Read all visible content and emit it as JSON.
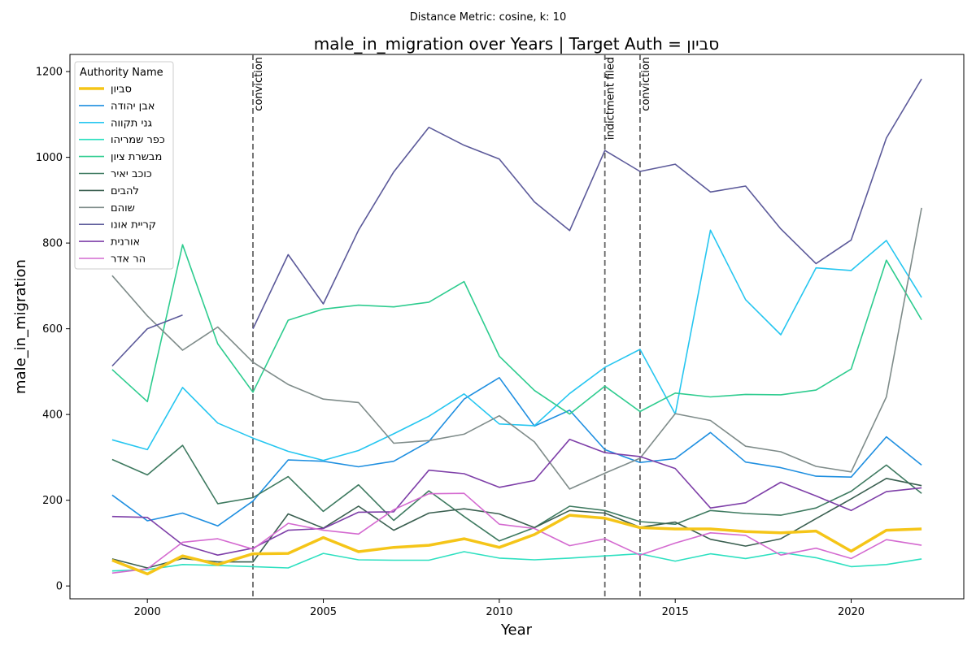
{
  "suptitle": "Distance Metric: cosine, k: 10",
  "chart_data": {
    "type": "line",
    "title": "male_in_migration over Years | Target Auth = סביון",
    "xlabel": "Year",
    "ylabel": "male_in_migration",
    "xlim": [
      1997.8,
      2023.2
    ],
    "ylim": [
      -30,
      1240
    ],
    "xticks": [
      2000,
      2005,
      2010,
      2015,
      2020
    ],
    "yticks": [
      0,
      200,
      400,
      600,
      800,
      1000,
      1200
    ],
    "grid": false,
    "legend": {
      "title": "Authority Name",
      "placement": "upper-left"
    },
    "vlines": [
      {
        "x": 2003,
        "label": "conviction"
      },
      {
        "x": 2013,
        "label": "indictment filed"
      },
      {
        "x": 2014,
        "label": "conviction"
      }
    ],
    "series": [
      {
        "name": "סביון",
        "color": "#f5c518",
        "width": 3.5,
        "highlight": true,
        "x": [
          1999,
          2000,
          2001,
          2002,
          2003,
          2004,
          2005,
          2006,
          2007,
          2008,
          2009,
          2010,
          2011,
          2012,
          2013,
          2014,
          2015,
          2016,
          2017,
          2018,
          2019,
          2020,
          2021,
          2022
        ],
        "y": [
          60,
          28,
          70,
          50,
          75,
          76,
          113,
          80,
          90,
          95,
          110,
          90,
          120,
          165,
          158,
          136,
          133,
          133,
          127,
          124,
          128,
          81,
          130,
          133
        ]
      },
      {
        "name": "אבן יהודה",
        "color": "#1f8fe0",
        "width": 1.6,
        "x": [
          1999,
          2000,
          2001,
          2002,
          2003,
          2004,
          2005,
          2006,
          2007,
          2008,
          2009,
          2010,
          2011,
          2012,
          2013,
          2014,
          2015,
          2016,
          2017,
          2018,
          2019,
          2020,
          2021,
          2022
        ],
        "y": [
          212,
          152,
          170,
          140,
          198,
          294,
          291,
          278,
          291,
          337,
          436,
          486,
          373,
          410,
          318,
          288,
          297,
          358,
          289,
          276,
          256,
          254,
          348,
          282
        ]
      },
      {
        "name": "גני תקווה",
        "color": "#26c6f0",
        "width": 1.6,
        "x": [
          1999,
          2000,
          2001,
          2002,
          2003,
          2004,
          2005,
          2006,
          2007,
          2008,
          2009,
          2010,
          2011,
          2012,
          2013,
          2014,
          2015,
          2016,
          2017,
          2018,
          2019,
          2020,
          2021,
          2022
        ],
        "y": [
          341,
          318,
          463,
          380,
          345,
          314,
          293,
          316,
          355,
          396,
          448,
          378,
          374,
          449,
          510,
          552,
          401,
          830,
          668,
          586,
          742,
          736,
          806,
          673
        ]
      },
      {
        "name": "כפר שמריהו",
        "color": "#2de0c0",
        "width": 1.6,
        "x": [
          1999,
          2000,
          2001,
          2002,
          2003,
          2004,
          2005,
          2006,
          2007,
          2008,
          2009,
          2010,
          2011,
          2012,
          2013,
          2014,
          2015,
          2016,
          2017,
          2018,
          2019,
          2020,
          2021,
          2022
        ],
        "y": [
          35,
          38,
          50,
          48,
          45,
          42,
          76,
          61,
          60,
          60,
          80,
          65,
          61,
          65,
          70,
          75,
          58,
          75,
          64,
          78,
          66,
          45,
          50,
          63
        ]
      },
      {
        "name": "מבשרת ציון",
        "color": "#2ecc8f",
        "width": 1.6,
        "x": [
          1999,
          2000,
          2001,
          2002,
          2003,
          2004,
          2005,
          2006,
          2007,
          2008,
          2009,
          2010,
          2011,
          2012,
          2013,
          2014,
          2015,
          2016,
          2017,
          2018,
          2019,
          2020,
          2021,
          2022
        ],
        "y": [
          505,
          430,
          796,
          565,
          452,
          620,
          646,
          655,
          651,
          662,
          710,
          536,
          456,
          401,
          466,
          407,
          450,
          441,
          447,
          446,
          457,
          506,
          760,
          621
        ]
      },
      {
        "name": "כוכב יאיר",
        "color": "#3e7a60",
        "width": 1.6,
        "x": [
          1999,
          2000,
          2001,
          2002,
          2003,
          2004,
          2005,
          2006,
          2007,
          2008,
          2009,
          2010,
          2011,
          2012,
          2013,
          2014,
          2015,
          2016,
          2017,
          2018,
          2019,
          2020,
          2021,
          2022
        ],
        "y": [
          295,
          259,
          328,
          192,
          206,
          255,
          174,
          236,
          153,
          222,
          162,
          105,
          136,
          186,
          176,
          150,
          144,
          176,
          169,
          165,
          182,
          221,
          282,
          216
        ]
      },
      {
        "name": "להבים",
        "color": "#3a5f50",
        "width": 1.6,
        "x": [
          1999,
          2000,
          2001,
          2002,
          2003,
          2004,
          2005,
          2006,
          2007,
          2008,
          2009,
          2010,
          2011,
          2012,
          2013,
          2014,
          2015,
          2016,
          2017,
          2018,
          2019,
          2020,
          2021,
          2022
        ],
        "y": [
          63,
          42,
          64,
          56,
          56,
          168,
          135,
          186,
          130,
          170,
          180,
          168,
          136,
          176,
          170,
          137,
          149,
          109,
          93,
          110,
          157,
          203,
          251,
          234
        ]
      },
      {
        "name": "שוהם",
        "color": "#7f8c8a",
        "width": 1.6,
        "x": [
          1999,
          2000,
          2001,
          2002,
          2003,
          2004,
          2005,
          2006,
          2007,
          2008,
          2009,
          2010,
          2011,
          2012,
          2013,
          2014,
          2015,
          2016,
          2017,
          2018,
          2019,
          2020,
          2021,
          2022
        ],
        "y": [
          724,
          630,
          550,
          604,
          522,
          470,
          436,
          428,
          333,
          339,
          354,
          397,
          336,
          226,
          263,
          298,
          402,
          386,
          326,
          313,
          279,
          266,
          441,
          882
        ]
      },
      {
        "name": "קריית אונו",
        "color": "#5c5a9a",
        "width": 1.6,
        "x": [
          1999,
          2000,
          2001,
          null,
          2003,
          2004,
          2005,
          2006,
          2007,
          2008,
          2009,
          2010,
          2011,
          2012,
          2013,
          2014,
          2015,
          2016,
          2017,
          2018,
          2019,
          2020,
          2021,
          2022
        ],
        "y": [
          513,
          600,
          632,
          null,
          600,
          773,
          658,
          830,
          966,
          1070,
          1028,
          996,
          896,
          829,
          1016,
          967,
          984,
          919,
          933,
          833,
          752,
          807,
          1045,
          1183
        ]
      },
      {
        "name": "אורנית",
        "color": "#7e3fa8",
        "width": 1.6,
        "x": [
          1999,
          2000,
          2001,
          2002,
          2003,
          2004,
          2005,
          2006,
          2007,
          2008,
          2009,
          2010,
          2011,
          2012,
          2013,
          2014,
          2015,
          2016,
          2017,
          2018,
          2019,
          2020,
          2021,
          2022
        ],
        "y": [
          162,
          160,
          96,
          72,
          88,
          130,
          134,
          172,
          173,
          270,
          262,
          230,
          246,
          342,
          311,
          302,
          274,
          182,
          194,
          242,
          210,
          176,
          220,
          229
        ]
      },
      {
        "name": "הר אדר",
        "color": "#d46ad0",
        "width": 1.6,
        "x": [
          1999,
          2000,
          2001,
          2002,
          2003,
          2004,
          2005,
          2006,
          2007,
          2008,
          2009,
          2010,
          2011,
          2012,
          2013,
          2014,
          2015,
          2016,
          2017,
          2018,
          2019,
          2020,
          2021,
          2022
        ],
        "y": [
          30,
          40,
          102,
          110,
          86,
          146,
          130,
          121,
          178,
          215,
          216,
          144,
          134,
          94,
          110,
          72,
          100,
          124,
          118,
          72,
          88,
          64,
          108,
          95
        ]
      }
    ]
  }
}
